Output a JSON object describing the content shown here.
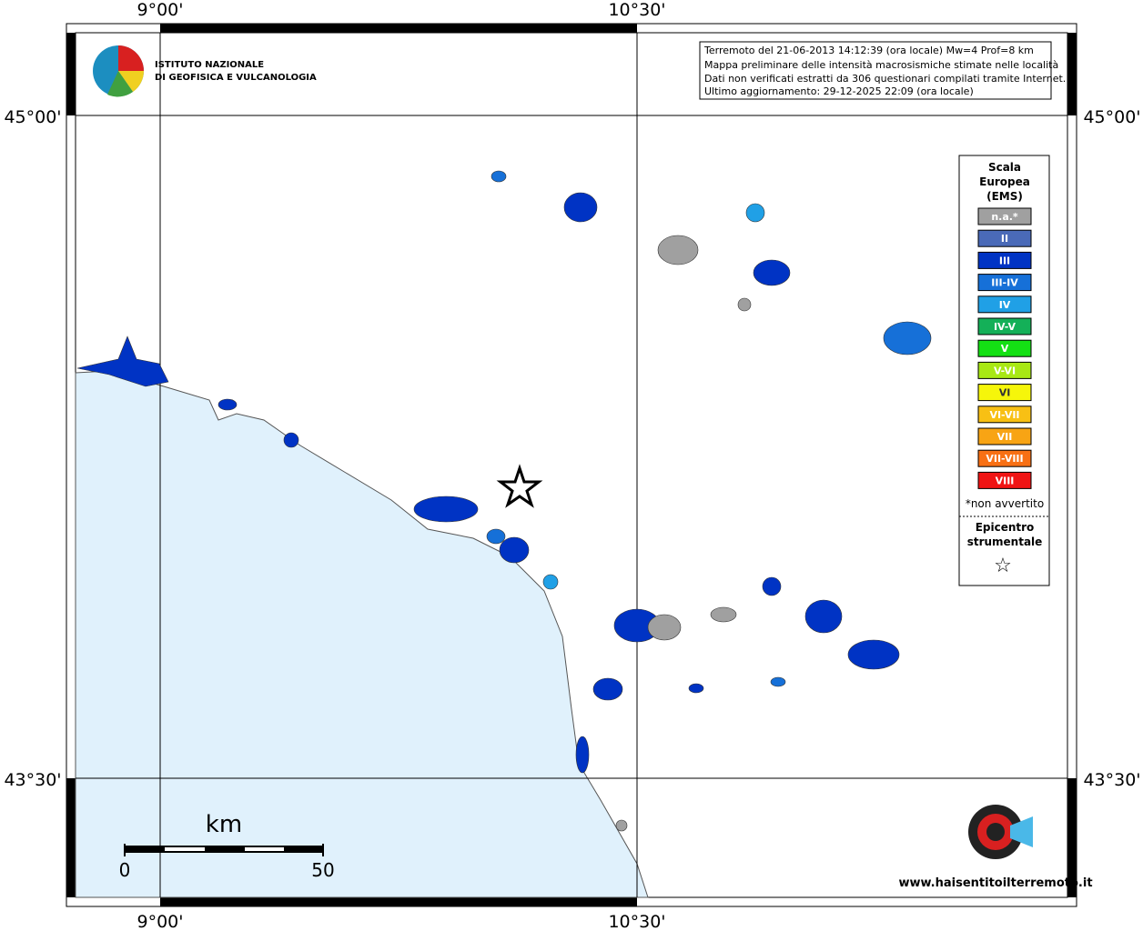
{
  "axes": {
    "top": [
      "9°00'",
      "10°30'"
    ],
    "bottom": [
      "9°00'",
      "10°30'"
    ],
    "left": [
      "45°00'",
      "43°30'"
    ],
    "right": [
      "45°00'",
      "43°30'"
    ]
  },
  "logo": {
    "line1": "ISTITUTO NAZIONALE",
    "line2": "DI GEOFISICA E VULCANOLOGIA"
  },
  "info": [
    "Terremoto del 21-06-2013 14:12:39 (ora locale) Mw=4 Prof=8 km",
    "Mappa preliminare delle intensità macrosismiche stimate nelle località",
    "Dati non verificati estratti da 306 questionari compilati tramite Internet.",
    "Ultimo aggiornamento: 29-12-2025 22:09 (ora locale)"
  ],
  "legend": {
    "title": [
      "Scala",
      "Europea",
      "(EMS)"
    ],
    "items": [
      {
        "label": "n.a.*",
        "color": "#a0a0a0"
      },
      {
        "label": "II",
        "color": "#4a6ab8"
      },
      {
        "label": "III",
        "color": "#0033c4"
      },
      {
        "label": "III-IV",
        "color": "#1670d8"
      },
      {
        "label": "IV",
        "color": "#20a0e6"
      },
      {
        "label": "IV-V",
        "color": "#14b058"
      },
      {
        "label": "V",
        "color": "#14e014"
      },
      {
        "label": "V-VI",
        "color": "#a8e814"
      },
      {
        "label": "VI",
        "color": "#f6f60a"
      },
      {
        "label": "VI-VII",
        "color": "#f8c014"
      },
      {
        "label": "VII",
        "color": "#f8a414"
      },
      {
        "label": "VII-VIII",
        "color": "#f87014"
      },
      {
        "label": "VIII",
        "color": "#f01414"
      }
    ],
    "note": "*non avvertito",
    "epicentre": [
      "Epicentro",
      "strumentale"
    ],
    "star": "☆"
  },
  "scale_bar": {
    "unit": "km",
    "start": "0",
    "end": "50"
  },
  "site": "www.haisentitoilterremoto.it"
}
